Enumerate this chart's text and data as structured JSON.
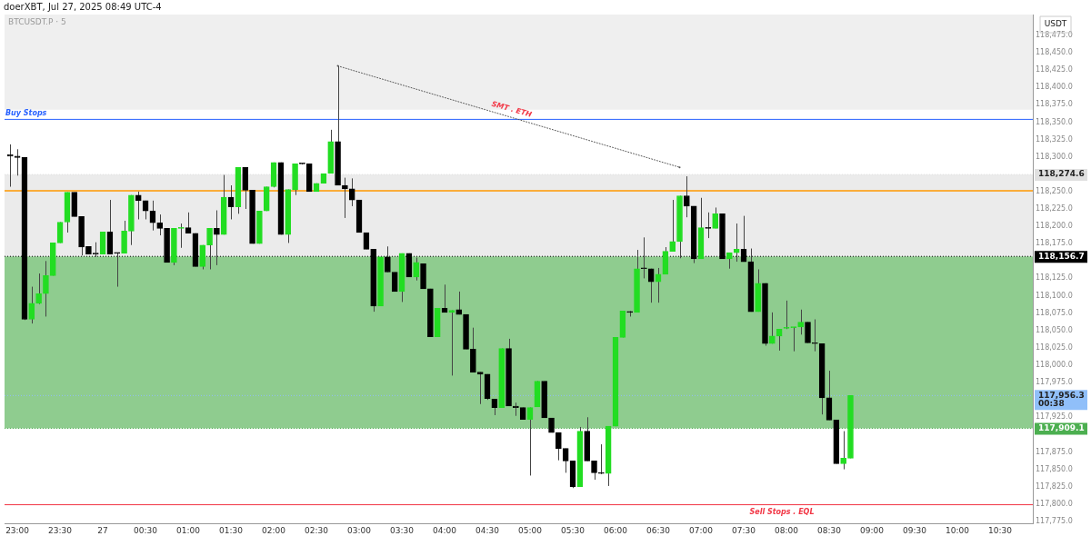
{
  "chart_data": {
    "type": "candlestick",
    "title": "BTCUSDT.P · 5",
    "ylabel": "USDT",
    "annotations": [
      "doerXBT, Jul 27, 2025 08:49 UTC-4",
      {
        "text": "SMT . ETH",
        "x": "2025-07-27T04:47",
        "y": 118368
      }
    ],
    "x": [
      "2025-07-26T22:55",
      "2025-07-26T23:00",
      "2025-07-26T23:05",
      "2025-07-26T23:10",
      "2025-07-26T23:15",
      "2025-07-26T23:20",
      "2025-07-26T23:25",
      "2025-07-26T23:30",
      "2025-07-26T23:35",
      "2025-07-26T23:40",
      "2025-07-26T23:45",
      "2025-07-26T23:50",
      "2025-07-26T23:55",
      "2025-07-27T00:00",
      "2025-07-27T00:05",
      "2025-07-27T00:10",
      "2025-07-27T00:15",
      "2025-07-27T00:20",
      "2025-07-27T00:25",
      "2025-07-27T00:30",
      "2025-07-27T00:35",
      "2025-07-27T00:40",
      "2025-07-27T00:45",
      "2025-07-27T00:50",
      "2025-07-27T00:55",
      "2025-07-27T01:00",
      "2025-07-27T01:05",
      "2025-07-27T01:10",
      "2025-07-27T01:15",
      "2025-07-27T01:20",
      "2025-07-27T01:25",
      "2025-07-27T01:30",
      "2025-07-27T01:35",
      "2025-07-27T01:40",
      "2025-07-27T01:45",
      "2025-07-27T01:50",
      "2025-07-27T01:55",
      "2025-07-27T02:00",
      "2025-07-27T02:05",
      "2025-07-27T02:10",
      "2025-07-27T02:15",
      "2025-07-27T02:20",
      "2025-07-27T02:25",
      "2025-07-27T02:30",
      "2025-07-27T02:35",
      "2025-07-27T02:40",
      "2025-07-27T02:45",
      "2025-07-27T02:50",
      "2025-07-27T02:55",
      "2025-07-27T03:00",
      "2025-07-27T03:05",
      "2025-07-27T03:10",
      "2025-07-27T03:15",
      "2025-07-27T03:20",
      "2025-07-27T03:25",
      "2025-07-27T03:30",
      "2025-07-27T03:35",
      "2025-07-27T03:40",
      "2025-07-27T03:45",
      "2025-07-27T03:50",
      "2025-07-27T03:55",
      "2025-07-27T04:00",
      "2025-07-27T04:05",
      "2025-07-27T04:10",
      "2025-07-27T04:15",
      "2025-07-27T04:20",
      "2025-07-27T04:25",
      "2025-07-27T04:30",
      "2025-07-27T04:35",
      "2025-07-27T04:40",
      "2025-07-27T04:45",
      "2025-07-27T04:50",
      "2025-07-27T04:55",
      "2025-07-27T05:00",
      "2025-07-27T05:05",
      "2025-07-27T05:10",
      "2025-07-27T05:15",
      "2025-07-27T05:20",
      "2025-07-27T05:25",
      "2025-07-27T05:30",
      "2025-07-27T05:35",
      "2025-07-27T05:40",
      "2025-07-27T05:45",
      "2025-07-27T05:50",
      "2025-07-27T05:55",
      "2025-07-27T06:00",
      "2025-07-27T06:05",
      "2025-07-27T06:10",
      "2025-07-27T06:15",
      "2025-07-27T06:20",
      "2025-07-27T06:25",
      "2025-07-27T06:30",
      "2025-07-27T06:35",
      "2025-07-27T06:40",
      "2025-07-27T06:45",
      "2025-07-27T06:50",
      "2025-07-27T06:55",
      "2025-07-27T07:00",
      "2025-07-27T07:05",
      "2025-07-27T07:10",
      "2025-07-27T07:15",
      "2025-07-27T07:20",
      "2025-07-27T07:25",
      "2025-07-27T07:30",
      "2025-07-27T07:35",
      "2025-07-27T07:40",
      "2025-07-27T07:45",
      "2025-07-27T07:50",
      "2025-07-27T07:55",
      "2025-07-27T08:00",
      "2025-07-27T08:05",
      "2025-07-27T08:10",
      "2025-07-27T08:15",
      "2025-07-27T08:20",
      "2025-07-27T08:25",
      "2025-07-27T08:30",
      "2025-07-27T08:35",
      "2025-07-27T08:40",
      "2025-07-27T08:45"
    ],
    "ohlc": [
      [
        118303,
        118318,
        118257,
        118301
      ],
      [
        118301,
        118311,
        118273,
        118299
      ],
      [
        118299,
        118299,
        118065,
        118066
      ],
      [
        118066,
        118113,
        118060,
        118089
      ],
      [
        118089,
        118132,
        118088,
        118103
      ],
      [
        118103,
        118150,
        118070,
        118129
      ],
      [
        118129,
        118176,
        118129,
        118176
      ],
      [
        118176,
        118206,
        118176,
        118206
      ],
      [
        118206,
        118249,
        118191,
        118249
      ],
      [
        118249,
        118249,
        118214,
        118214
      ],
      [
        118214,
        118214,
        118158,
        118170
      ],
      [
        118171,
        118171,
        118160,
        118160
      ],
      [
        118161,
        118177,
        118156,
        118160
      ],
      [
        118160,
        118192,
        118160,
        118192
      ],
      [
        118192,
        118238,
        118160,
        118160
      ],
      [
        118162,
        118162,
        118113,
        118161
      ],
      [
        118161,
        118208,
        118161,
        118193
      ],
      [
        118193,
        118245,
        118173,
        118245
      ],
      [
        118245,
        118250,
        118210,
        118237
      ],
      [
        118237,
        118237,
        118210,
        118222
      ],
      [
        118222,
        118237,
        118194,
        118205
      ],
      [
        118205,
        118217,
        118187,
        118197
      ],
      [
        118197,
        118197,
        118148,
        118148
      ],
      [
        118148,
        118197,
        118144,
        118197
      ],
      [
        118197,
        118204,
        118169,
        118198
      ],
      [
        118198,
        118220,
        118190,
        118190
      ],
      [
        118190,
        118190,
        118142,
        118142
      ],
      [
        118142,
        118173,
        118138,
        118173
      ],
      [
        118173,
        118197,
        118138,
        118197
      ],
      [
        118197,
        118223,
        118144,
        118188
      ],
      [
        118188,
        118274,
        118188,
        118242
      ],
      [
        118242,
        118259,
        118210,
        118228
      ],
      [
        118228,
        118285,
        118218,
        118285
      ],
      [
        118285,
        118285,
        118225,
        118252
      ],
      [
        118252,
        118252,
        118175,
        118175
      ],
      [
        118175,
        118222,
        118175,
        118222
      ],
      [
        118222,
        118257,
        118222,
        118257
      ],
      [
        118257,
        118292,
        118256,
        118292
      ],
      [
        118292,
        118292,
        118188,
        118188
      ],
      [
        118188,
        118253,
        118176,
        118253
      ],
      [
        118253,
        118290,
        118245,
        118290
      ],
      [
        118290,
        118291,
        118289,
        118290
      ],
      [
        118290,
        118290,
        118250,
        118250
      ],
      [
        118250,
        118262,
        118250,
        118262
      ],
      [
        118262,
        118276,
        118262,
        118276
      ],
      [
        118276,
        118339,
        118276,
        118322
      ],
      [
        118322,
        118431,
        118259,
        118259
      ],
      [
        118259,
        118270,
        118212,
        118254
      ],
      [
        118254,
        118269,
        118229,
        118238
      ],
      [
        118238,
        118238,
        118191,
        118191
      ],
      [
        118191,
        118191,
        118167,
        118167
      ],
      [
        118167,
        118167,
        118077,
        118085
      ],
      [
        118085,
        118156,
        118085,
        118156
      ],
      [
        118156,
        118171,
        118134,
        118134
      ],
      [
        118134,
        118134,
        118106,
        118106
      ],
      [
        118106,
        118161,
        118091,
        118161
      ],
      [
        118161,
        118161,
        118127,
        118127
      ],
      [
        118127,
        118155,
        118122,
        118148
      ],
      [
        118146,
        118146,
        118110,
        118110
      ],
      [
        118110,
        118110,
        118041,
        118041
      ],
      [
        118041,
        118082,
        118041,
        118082
      ],
      [
        118082,
        118116,
        118076,
        118076
      ],
      [
        118076,
        118079,
        117985,
        118079
      ],
      [
        118080,
        118106,
        118073,
        118073
      ],
      [
        118073,
        118073,
        118023,
        118023
      ],
      [
        118023,
        118054,
        117990,
        117990
      ],
      [
        117990,
        117990,
        117944,
        117987
      ],
      [
        117987,
        117987,
        117950,
        117952
      ],
      [
        117951,
        117951,
        117928,
        117939
      ],
      [
        117939,
        118024,
        117939,
        118024
      ],
      [
        118024,
        118038,
        117941,
        117941
      ],
      [
        117941,
        117946,
        117927,
        117939
      ],
      [
        117939,
        117939,
        117922,
        117922
      ],
      [
        117922,
        117939,
        117841,
        117939
      ],
      [
        117940,
        117977,
        117940,
        117977
      ],
      [
        117977,
        117977,
        117924,
        117924
      ],
      [
        117924,
        117924,
        117903,
        117903
      ],
      [
        117903,
        117903,
        117863,
        117880
      ],
      [
        117880,
        117880,
        117845,
        117862
      ],
      [
        117862,
        117862,
        117823,
        117825
      ],
      [
        117825,
        117911,
        117825,
        117905
      ],
      [
        117905,
        117925,
        117862,
        117862
      ],
      [
        117862,
        117862,
        117835,
        117845
      ],
      [
        117845,
        117886,
        117843,
        117844
      ],
      [
        117844,
        117912,
        117826,
        117912
      ],
      [
        117912,
        118040,
        117912,
        118040
      ],
      [
        118040,
        118078,
        118040,
        118078
      ],
      [
        118077,
        118078,
        118070,
        118076
      ],
      [
        118076,
        118166,
        118076,
        118139
      ],
      [
        118139,
        118184,
        118125,
        118139
      ],
      [
        118139,
        118139,
        118090,
        118120
      ],
      [
        118120,
        118140,
        118090,
        118131
      ],
      [
        118131,
        118170,
        118131,
        118164
      ],
      [
        118164,
        118238,
        118164,
        118178
      ],
      [
        118178,
        118244,
        118154,
        118244
      ],
      [
        118244,
        118272,
        118213,
        118229
      ],
      [
        118229,
        118229,
        118147,
        118153
      ],
      [
        118153,
        118241,
        118153,
        118198
      ],
      [
        118198,
        118220,
        118183,
        118197
      ],
      [
        118197,
        118227,
        118197,
        118218
      ],
      [
        118218,
        118218,
        118153,
        118153
      ],
      [
        118153,
        118162,
        118139,
        118162
      ],
      [
        118162,
        118204,
        118149,
        118167
      ],
      [
        118167,
        118215,
        118149,
        118149
      ],
      [
        118149,
        118168,
        118077,
        118077
      ],
      [
        118077,
        118138,
        118077,
        118118
      ],
      [
        118118,
        118118,
        118028,
        118031
      ],
      [
        118031,
        118076,
        118031,
        118042
      ],
      [
        118042,
        118052,
        118021,
        118052
      ],
      [
        118053,
        118093,
        118052,
        118054
      ],
      [
        118054,
        118055,
        118020,
        118055
      ],
      [
        118055,
        118080,
        118044,
        118062
      ],
      [
        118062,
        118062,
        118032,
        118032
      ],
      [
        118032,
        118066,
        118020,
        118031
      ],
      [
        118031,
        118031,
        117929,
        117953
      ],
      [
        117953,
        117992,
        117921,
        117921
      ],
      [
        117921,
        117921,
        117858,
        117858
      ],
      [
        117858,
        117905,
        117850,
        117866
      ],
      [
        117866,
        117956.3,
        117866,
        117956.3
      ]
    ],
    "colors": [
      "#000000",
      "#000000",
      "#000000",
      "#22dd22",
      "#22dd22",
      "#22dd22",
      "#22dd22",
      "#22dd22",
      "#22dd22",
      "#000000",
      "#000000",
      "#000000",
      "#000000",
      "#22dd22",
      "#000000",
      "#000000",
      "#22dd22",
      "#22dd22",
      "#000000",
      "#000000",
      "#000000",
      "#000000",
      "#000000",
      "#22dd22",
      "#22dd22",
      "#000000",
      "#000000",
      "#22dd22",
      "#22dd22",
      "#000000",
      "#22dd22",
      "#000000",
      "#22dd22",
      "#000000",
      "#000000",
      "#22dd22",
      "#22dd22",
      "#22dd22",
      "#000000",
      "#22dd22",
      "#22dd22",
      "#000000",
      "#000000",
      "#22dd22",
      "#22dd22",
      "#22dd22",
      "#000000",
      "#000000",
      "#000000",
      "#000000",
      "#000000",
      "#000000",
      "#22dd22",
      "#000000",
      "#000000",
      "#22dd22",
      "#000000",
      "#22dd22",
      "#000000",
      "#000000",
      "#22dd22",
      "#000000",
      "#22dd22",
      "#000000",
      "#000000",
      "#000000",
      "#000000",
      "#000000",
      "#000000",
      "#22dd22",
      "#000000",
      "#000000",
      "#000000",
      "#22dd22",
      "#22dd22",
      "#000000",
      "#000000",
      "#000000",
      "#000000",
      "#000000",
      "#22dd22",
      "#000000",
      "#000000",
      "#000000",
      "#22dd22",
      "#22dd22",
      "#22dd22",
      "#000000",
      "#22dd22",
      "#000000",
      "#000000",
      "#22dd22",
      "#22dd22",
      "#22dd22",
      "#22dd22",
      "#000000",
      "#000000",
      "#22dd22",
      "#000000",
      "#22dd22",
      "#000000",
      "#22dd22",
      "#22dd22",
      "#000000",
      "#000000",
      "#22dd22",
      "#000000",
      "#22dd22",
      "#22dd22",
      "#22dd22",
      "#22dd22",
      "#22dd22",
      "#000000",
      "#000000",
      "#000000",
      "#000000",
      "#000000",
      "#22dd22",
      "#22dd22"
    ],
    "series": [
      {
        "type": "line",
        "x": [
          "2025-07-27T02:45",
          "2025-07-27T06:45"
        ],
        "values": [
          118431,
          118285
        ],
        "color": "#555555",
        "line_style": "dotted"
      }
    ],
    "xlim": [
      "2025-07-26T22:51",
      "2025-07-27T10:53"
    ],
    "xticks": [
      {
        "value": "2025-07-26T23:00",
        "label": "23:00"
      },
      {
        "value": "2025-07-26T23:30",
        "label": "23:30"
      },
      {
        "value": "2025-07-27T00:00",
        "label": "27"
      },
      {
        "value": "2025-07-27T00:30",
        "label": "00:30"
      },
      {
        "value": "2025-07-27T01:00",
        "label": "01:00"
      },
      {
        "value": "2025-07-27T01:30",
        "label": "01:30"
      },
      {
        "value": "2025-07-27T02:00",
        "label": "02:00"
      },
      {
        "value": "2025-07-27T02:30",
        "label": "02:30"
      },
      {
        "value": "2025-07-27T03:00",
        "label": "03:00"
      },
      {
        "value": "2025-07-27T03:30",
        "label": "03:30"
      },
      {
        "value": "2025-07-27T04:00",
        "label": "04:00"
      },
      {
        "value": "2025-07-27T04:30",
        "label": "04:30"
      },
      {
        "value": "2025-07-27T05:00",
        "label": "05:00"
      },
      {
        "value": "2025-07-27T05:30",
        "label": "05:30"
      },
      {
        "value": "2025-07-27T06:00",
        "label": "06:00"
      },
      {
        "value": "2025-07-27T06:30",
        "label": "06:30"
      },
      {
        "value": "2025-07-27T07:00",
        "label": "07:00"
      },
      {
        "value": "2025-07-27T07:30",
        "label": "07:30"
      },
      {
        "value": "2025-07-27T08:00",
        "label": "08:00"
      },
      {
        "value": "2025-07-27T08:30",
        "label": "08:30"
      },
      {
        "value": "2025-07-27T09:00",
        "label": "09:00"
      },
      {
        "value": "2025-07-27T09:30",
        "label": "09:30"
      },
      {
        "value": "2025-07-27T10:00",
        "label": "10:00"
      },
      {
        "value": "2025-07-27T10:30",
        "label": "10:30"
      }
    ],
    "ylim": [
      117772,
      118505
    ],
    "yticks": [
      {
        "value": 117775,
        "label": "117,775.0"
      },
      {
        "value": 117800,
        "label": "117,800.0"
      },
      {
        "value": 117825,
        "label": "117,825.0"
      },
      {
        "value": 117850,
        "label": "117,850.0"
      },
      {
        "value": 117875,
        "label": "117,875.0"
      },
      {
        "value": 117925,
        "label": "117,925.0"
      },
      {
        "value": 117975,
        "label": "117,975.0"
      },
      {
        "value": 118000,
        "label": "118,000.0"
      },
      {
        "value": 118025,
        "label": "118,025.0"
      },
      {
        "value": 118050,
        "label": "118,050.0"
      },
      {
        "value": 118075,
        "label": "118,075.0"
      },
      {
        "value": 118100,
        "label": "118,100.0"
      },
      {
        "value": 118125,
        "label": "118,125.0"
      },
      {
        "value": 118175,
        "label": "118,175.0"
      },
      {
        "value": 118200,
        "label": "118,200.0"
      },
      {
        "value": 118225,
        "label": "118,225.0"
      },
      {
        "value": 118250,
        "label": "118,250.0"
      },
      {
        "value": 118300,
        "label": "118,300.0"
      },
      {
        "value": 118325,
        "label": "118,325.0"
      },
      {
        "value": 118350,
        "label": "118,350.0"
      },
      {
        "value": 118375,
        "label": "118,375.0"
      },
      {
        "value": 118400,
        "label": "118,400.0"
      },
      {
        "value": 118425,
        "label": "118,425.0"
      },
      {
        "value": 118450,
        "label": "118,450.0"
      },
      {
        "value": 118475,
        "label": "118,475.0"
      }
    ],
    "bands": [
      {
        "axis": "y",
        "from": 118368,
        "to": 118505,
        "color": "#efefef"
      },
      {
        "axis": "y",
        "from": 118156.7,
        "to": 118274.6,
        "color": "#ebebeb"
      },
      {
        "axis": "y",
        "from": 117909.1,
        "to": 118156.7,
        "color": "#8fcc8f"
      }
    ],
    "ref_lines": [
      {
        "axis": "y",
        "value": 118354,
        "label": "Buy Stops",
        "color": "#2962ff",
        "line_style": "solid"
      },
      {
        "axis": "y",
        "value": 117799,
        "label": "Sell Stops . EQL",
        "color": "#f23645",
        "line_style": "solid"
      },
      {
        "axis": "y",
        "value": 118251,
        "color": "#ff9800",
        "line_style": "solid"
      },
      {
        "axis": "y",
        "value": 118274.6,
        "label": "118,274.6",
        "color": "#e0e0e0",
        "line_style": "dotted"
      },
      {
        "axis": "y",
        "value": 118156.7,
        "label": "118,156.7",
        "color": "#000000",
        "line_style": "dotted"
      },
      {
        "axis": "y",
        "value": 117956.3,
        "label": "117,956.3\n00:38",
        "color": "#90bff9",
        "line_style": "dotted"
      },
      {
        "axis": "y",
        "value": 117909.1,
        "label": "117,909.1",
        "color": "#4caf50",
        "line_style": "dotted"
      }
    ]
  }
}
